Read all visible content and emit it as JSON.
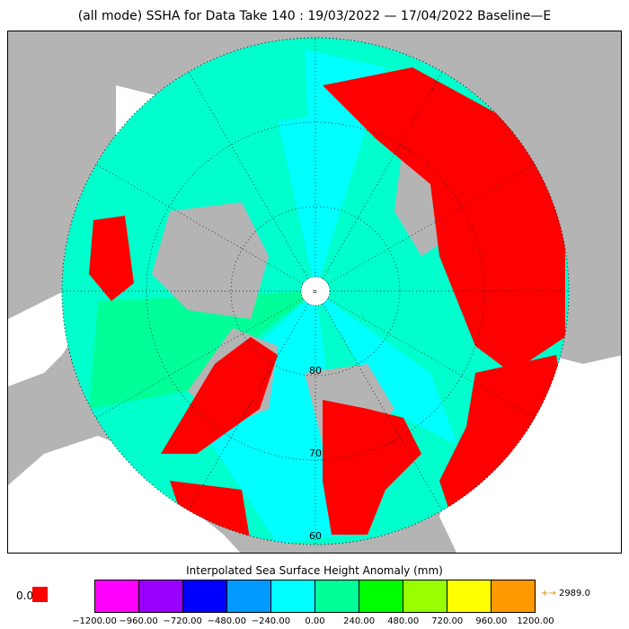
{
  "title": "(all mode) SSHA for Data Take 140 : 19/03/2022 — 17/04/2022 Baseline—E",
  "map": {
    "lat_labels": [
      "80",
      "70",
      "60"
    ],
    "colors": {
      "land": "#b4b4b4",
      "ocean_white": "#ffffff",
      "grid": "#000000",
      "zero_red": "#ff0000"
    }
  },
  "legend": {
    "title": "Interpolated Sea Surface Height Anomaly (mm)",
    "zero_label": "0.0",
    "zero_color": "#ff0000",
    "colors": [
      "#ff00ff",
      "#9900ff",
      "#0000ff",
      "#0099ff",
      "#00ffff",
      "#00ff99",
      "#00ff00",
      "#99ff00",
      "#ffff00",
      "#ff9900"
    ],
    "ticks": [
      "−1200.00",
      "−960.00",
      "−720.00",
      "−480.00",
      "−240.00",
      "0.00",
      "240.00",
      "480.00",
      "720.00",
      "960.00",
      "1200.00"
    ],
    "max_arrow": "+→",
    "max_value": "2989.0"
  }
}
